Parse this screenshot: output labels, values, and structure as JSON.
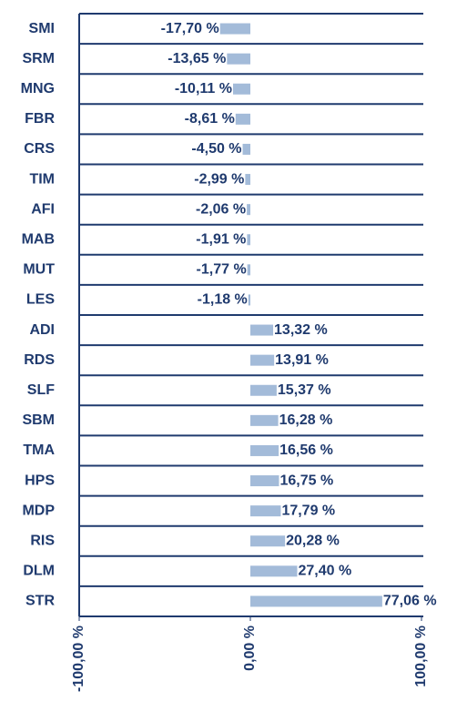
{
  "chart_data": {
    "type": "bar",
    "orientation": "horizontal",
    "categories": [
      "SMI",
      "SRM",
      "MNG",
      "FBR",
      "CRS",
      "TIM",
      "AFI",
      "MAB",
      "MUT",
      "LES",
      "ADI",
      "RDS",
      "SLF",
      "SBM",
      "TMA",
      "HPS",
      "MDP",
      "RIS",
      "DLM",
      "STR"
    ],
    "values": [
      -17.7,
      -13.65,
      -10.11,
      -8.61,
      -4.5,
      -2.99,
      -2.06,
      -1.91,
      -1.77,
      -1.18,
      13.32,
      13.91,
      15.37,
      16.28,
      16.56,
      16.75,
      17.79,
      20.28,
      27.4,
      77.06
    ],
    "value_labels": [
      "-17,70 %",
      "-13,65 %",
      "-10,11 %",
      "-8,61 %",
      "-4,50 %",
      "-2,99 %",
      "-2,06 %",
      "-1,91 %",
      "-1,77 %",
      "-1,18 %",
      "13,32 %",
      "13,91 %",
      "15,37 %",
      "16,28 %",
      "16,56 %",
      "16,75 %",
      "17,79 %",
      "20,28 %",
      "27,40 %",
      "77,06 %"
    ],
    "color": "#a3bbd9",
    "xlim": [
      -100,
      100
    ],
    "xticks": [
      {
        "value": -100,
        "label": "-100,00 %"
      },
      {
        "value": 0,
        "label": "0,00 %"
      },
      {
        "value": 100,
        "label": "100,00 %"
      }
    ]
  }
}
